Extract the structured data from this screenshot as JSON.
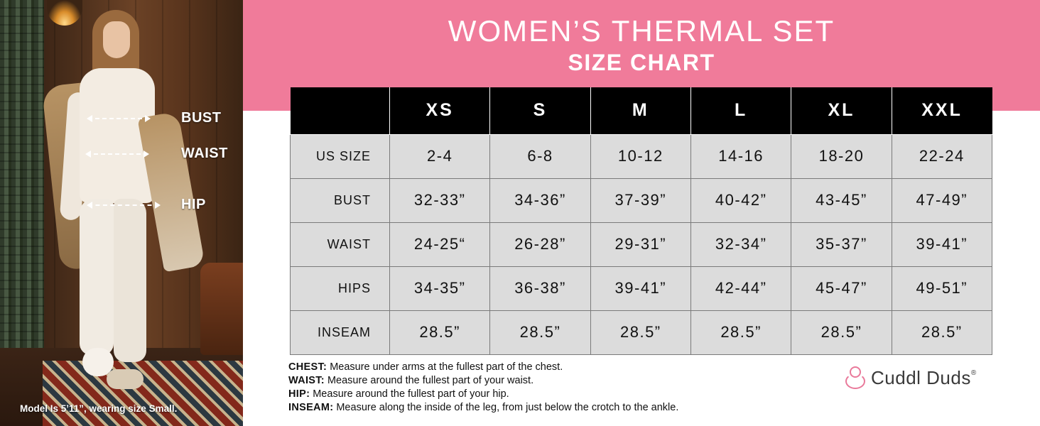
{
  "photo": {
    "labels": {
      "bust": "BUST",
      "waist": "WAIST",
      "hip": "HIP"
    },
    "caption": "Model Is 5’11”, wearing size Small."
  },
  "header": {
    "title": "WOMEN’S THERMAL SET",
    "subtitle": "SIZE CHART",
    "band_color": "#f07b9a"
  },
  "table": {
    "columns": [
      "",
      "XS",
      "S",
      "M",
      "L",
      "XL",
      "XXL"
    ],
    "rows": [
      {
        "label": "US SIZE",
        "values": [
          "2-4",
          "6-8",
          "10-12",
          "14-16",
          "18-20",
          "22-24"
        ]
      },
      {
        "label": "BUST",
        "values": [
          "32-33”",
          "34-36”",
          "37-39”",
          "40-42”",
          "43-45”",
          "47-49”"
        ]
      },
      {
        "label": "WAIST",
        "values": [
          "24-25“",
          "26-28”",
          "29-31”",
          "32-34”",
          "35-37”",
          "39-41”"
        ]
      },
      {
        "label": "HIPS",
        "values": [
          "34-35”",
          "36-38”",
          "39-41”",
          "42-44”",
          "45-47”",
          "49-51”"
        ]
      },
      {
        "label": "INSEAM",
        "values": [
          "28.5”",
          "28.5”",
          "28.5”",
          "28.5”",
          "28.5”",
          "28.5”"
        ]
      }
    ]
  },
  "notes": [
    {
      "key": "CHEST:",
      "text": " Measure under arms at the fullest part of the chest."
    },
    {
      "key": "WAIST:",
      "text": " Measure around the fullest part of your waist."
    },
    {
      "key": "HIP:",
      "text": " Measure around the fullest part of your hip."
    },
    {
      "key": "INSEAM:",
      "text": " Measure along the inside of the leg, from just below the crotch to the ankle."
    }
  ],
  "brand": {
    "name": "Cuddl Duds",
    "reg": "®",
    "icon": "cuddl-duds-logo"
  }
}
